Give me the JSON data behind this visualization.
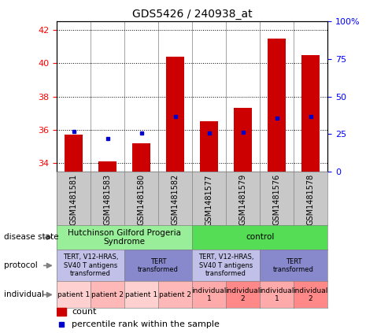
{
  "title": "GDS5426 / 240938_at",
  "samples": [
    "GSM1481581",
    "GSM1481583",
    "GSM1481580",
    "GSM1481582",
    "GSM1481577",
    "GSM1481579",
    "GSM1481576",
    "GSM1481578"
  ],
  "count_values": [
    35.7,
    34.1,
    35.2,
    40.4,
    36.5,
    37.3,
    41.5,
    40.5
  ],
  "percentile_values": [
    26.5,
    22.0,
    25.5,
    36.5,
    25.5,
    26.0,
    35.5,
    36.5
  ],
  "ylim_left": [
    33.5,
    42.5
  ],
  "ylim_right": [
    0,
    100
  ],
  "yticks_left": [
    34,
    36,
    38,
    40,
    42
  ],
  "yticks_right": [
    0,
    25,
    50,
    75,
    100
  ],
  "ytick_labels_right": [
    "0",
    "25",
    "50",
    "75",
    "100%"
  ],
  "bar_color": "#cc0000",
  "dot_color": "#0000cc",
  "disease_state_groups": [
    {
      "label": "Hutchinson Gilford Progeria\nSyndrome",
      "start": 0,
      "end": 4,
      "color": "#99ee99"
    },
    {
      "label": "control",
      "start": 4,
      "end": 8,
      "color": "#55dd55"
    }
  ],
  "protocol_groups": [
    {
      "label": "TERT, V12-HRAS,\nSV40 T antigens\ntransformed",
      "start": 0,
      "end": 2,
      "color": "#c0c0e8"
    },
    {
      "label": "TERT\ntransformed",
      "start": 2,
      "end": 4,
      "color": "#8888cc"
    },
    {
      "label": "TERT, V12-HRAS,\nSV40 T antigens\ntransformed",
      "start": 4,
      "end": 6,
      "color": "#c0c0e8"
    },
    {
      "label": "TERT\ntransformed",
      "start": 6,
      "end": 8,
      "color": "#8888cc"
    }
  ],
  "individual_groups": [
    {
      "label": "patient 1",
      "start": 0,
      "end": 1,
      "color": "#ffd0d0"
    },
    {
      "label": "patient 2",
      "start": 1,
      "end": 2,
      "color": "#ffb8b8"
    },
    {
      "label": "patient 1",
      "start": 2,
      "end": 3,
      "color": "#ffd0d0"
    },
    {
      "label": "patient 2",
      "start": 3,
      "end": 4,
      "color": "#ffb8b8"
    },
    {
      "label": "individual\n1",
      "start": 4,
      "end": 5,
      "color": "#ffaaaa"
    },
    {
      "label": "individual\n2",
      "start": 5,
      "end": 6,
      "color": "#ff8888"
    },
    {
      "label": "individual\n1",
      "start": 6,
      "end": 7,
      "color": "#ffaaaa"
    },
    {
      "label": "individual\n2",
      "start": 7,
      "end": 8,
      "color": "#ff8888"
    }
  ]
}
